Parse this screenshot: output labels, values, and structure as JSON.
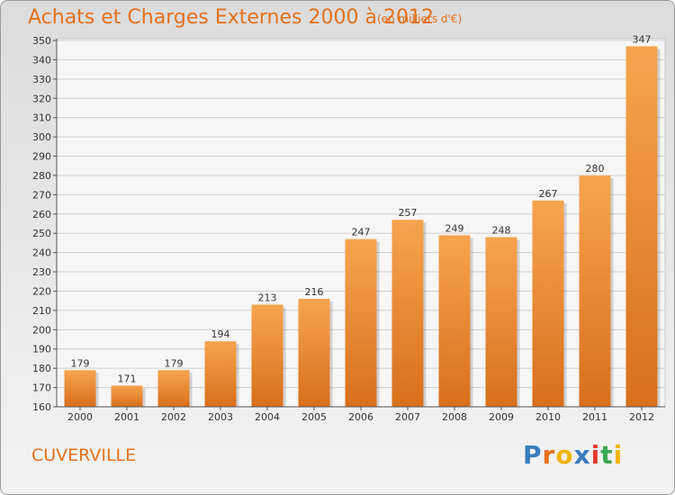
{
  "chart_data": {
    "type": "bar",
    "title": "Achats et Charges Externes 2000 à 2012",
    "subtitle": "(en milliers d'€)",
    "xlabel": "",
    "ylabel": "",
    "categories": [
      "2000",
      "2001",
      "2002",
      "2003",
      "2004",
      "2005",
      "2006",
      "2007",
      "2008",
      "2009",
      "2010",
      "2011",
      "2012"
    ],
    "values": [
      179,
      171,
      179,
      194,
      213,
      216,
      247,
      257,
      249,
      248,
      267,
      280,
      347
    ],
    "ylim": [
      160,
      350
    ],
    "yticks": [
      160,
      170,
      180,
      190,
      200,
      210,
      220,
      230,
      240,
      250,
      260,
      270,
      280,
      290,
      300,
      310,
      320,
      330,
      340,
      350
    ],
    "grid": true,
    "bar_color_top": "#f7a44f",
    "bar_color_bottom": "#d86f1b"
  },
  "footer": {
    "commune": "CUVERVILLE",
    "logo_letters": [
      "P",
      "r",
      "o",
      "x",
      "i",
      "t",
      "i"
    ],
    "logo_colors": [
      "#3a7bbf",
      "#e4711c",
      "#f2b400",
      "#3a7bbf",
      "#e23b2e",
      "#3aa64f",
      "#f2b400"
    ]
  }
}
